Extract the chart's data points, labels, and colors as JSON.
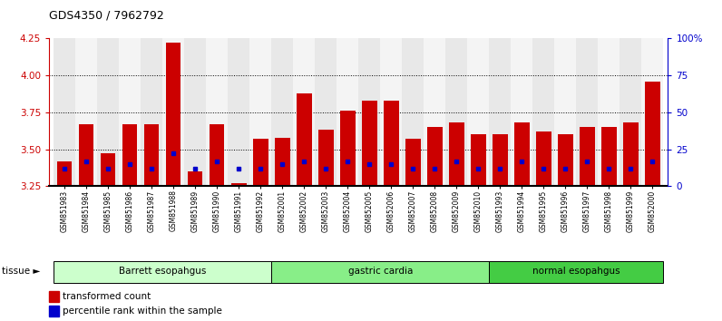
{
  "title": "GDS4350 / 7962792",
  "samples": [
    "GSM851983",
    "GSM851984",
    "GSM851985",
    "GSM851986",
    "GSM851987",
    "GSM851988",
    "GSM851989",
    "GSM851990",
    "GSM851991",
    "GSM851992",
    "GSM852001",
    "GSM852002",
    "GSM852003",
    "GSM852004",
    "GSM852005",
    "GSM852006",
    "GSM852007",
    "GSM852008",
    "GSM852009",
    "GSM852010",
    "GSM851993",
    "GSM851994",
    "GSM851995",
    "GSM851996",
    "GSM851997",
    "GSM851998",
    "GSM851999",
    "GSM852000"
  ],
  "red_values": [
    3.42,
    3.67,
    3.47,
    3.67,
    3.67,
    4.22,
    3.35,
    3.67,
    3.27,
    3.57,
    3.58,
    3.88,
    3.63,
    3.76,
    3.83,
    3.83,
    3.57,
    3.65,
    3.68,
    3.6,
    3.6,
    3.68,
    3.62,
    3.6,
    3.65,
    3.65,
    3.68,
    3.96
  ],
  "blue_values": [
    3.37,
    3.42,
    3.37,
    3.4,
    3.37,
    3.47,
    3.37,
    3.42,
    3.37,
    3.37,
    3.4,
    3.42,
    3.37,
    3.42,
    3.4,
    3.4,
    3.37,
    3.37,
    3.42,
    3.37,
    3.37,
    3.42,
    3.37,
    3.37,
    3.42,
    3.37,
    3.37,
    3.42
  ],
  "groups": [
    {
      "label": "Barrett esopahgus",
      "start": 0,
      "end": 10
    },
    {
      "label": "gastric cardia",
      "start": 10,
      "end": 20
    },
    {
      "label": "normal esopahgus",
      "start": 20,
      "end": 28
    }
  ],
  "group_colors": [
    "#ccffcc",
    "#88ee88",
    "#44cc44"
  ],
  "ymin": 3.25,
  "ymax": 4.25,
  "yticks": [
    3.25,
    3.5,
    3.75,
    4.0,
    4.25
  ],
  "right_yticks": [
    0,
    25,
    50,
    75,
    100
  ],
  "bar_color": "#cc0000",
  "dot_color": "#0000cc",
  "background_color": "#ffffff"
}
